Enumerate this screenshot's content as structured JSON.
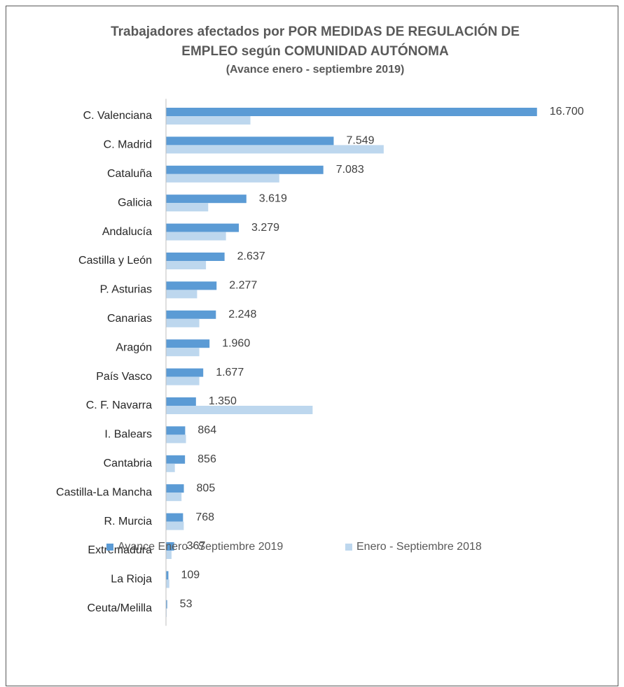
{
  "chart_data": {
    "type": "hbar",
    "title": "Trabajadores afectados por POR MEDIDAS DE REGULACIÓN DE EMPLEO según COMUNIDAD AUTÓNOMA",
    "subtitle": "(Avance enero - septiembre 2019)",
    "categories": [
      "C. Valenciana",
      "C. Madrid",
      "Cataluña",
      "Galicia",
      "Andalucía",
      "Castilla y León",
      "P. Asturias",
      "Canarias",
      "Aragón",
      "País Vasco",
      "C. F. Navarra",
      "I. Balears",
      "Cantabria",
      "Castilla-La Mancha",
      "R. Murcia",
      "Extremadura",
      "La Rioja",
      "Ceuta/Melilla"
    ],
    "series": [
      {
        "name": "Avance Enero - Septiembre 2019",
        "color": "#5b9bd5",
        "values": [
          16700,
          7549,
          7083,
          3619,
          3279,
          2637,
          2277,
          2248,
          1960,
          1677,
          1350,
          864,
          856,
          805,
          768,
          367,
          109,
          53
        ],
        "value_labels": [
          "16.700",
          "7.549",
          "7.083",
          "3.619",
          "3.279",
          "2.637",
          "2.277",
          "2.248",
          "1.960",
          "1.677",
          "1.350",
          "864",
          "856",
          "805",
          "768",
          "367",
          "109",
          "53"
        ]
      },
      {
        "name": "Enero - Septiembre 2018",
        "color": "#bdd7ee",
        "values": [
          3800,
          9800,
          5100,
          1900,
          2700,
          1800,
          1400,
          1500,
          1500,
          1500,
          6600,
          900,
          400,
          700,
          800,
          250,
          150,
          30
        ]
      }
    ],
    "xlim": [
      0,
      18000
    ],
    "legend": "bottom"
  }
}
